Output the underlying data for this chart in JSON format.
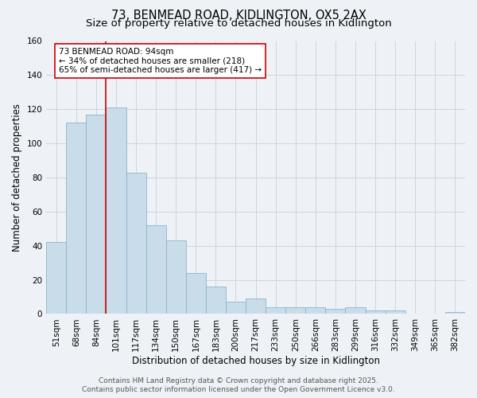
{
  "title_line1": "73, BENMEAD ROAD, KIDLINGTON, OX5 2AX",
  "title_line2": "Size of property relative to detached houses in Kidlington",
  "xlabel": "Distribution of detached houses by size in Kidlington",
  "ylabel": "Number of detached properties",
  "categories": [
    "51sqm",
    "68sqm",
    "84sqm",
    "101sqm",
    "117sqm",
    "134sqm",
    "150sqm",
    "167sqm",
    "183sqm",
    "200sqm",
    "217sqm",
    "233sqm",
    "250sqm",
    "266sqm",
    "283sqm",
    "299sqm",
    "316sqm",
    "332sqm",
    "349sqm",
    "365sqm",
    "382sqm"
  ],
  "values": [
    42,
    112,
    117,
    121,
    83,
    52,
    43,
    24,
    16,
    7,
    9,
    4,
    4,
    4,
    3,
    4,
    2,
    2,
    0,
    0,
    1
  ],
  "bar_color": "#c9dcea",
  "bar_edge_color": "#8ab4cc",
  "vline_x": 2.5,
  "vline_color": "#cc0000",
  "annotation_text": "73 BENMEAD ROAD: 94sqm\n← 34% of detached houses are smaller (218)\n65% of semi-detached houses are larger (417) →",
  "annotation_box_facecolor": "#ffffff",
  "annotation_box_edgecolor": "#cc0000",
  "ylim": [
    0,
    160
  ],
  "yticks": [
    0,
    20,
    40,
    60,
    80,
    100,
    120,
    140,
    160
  ],
  "grid_color": "#cdd5e0",
  "background_color": "#eef2f7",
  "footer_text": "Contains HM Land Registry data © Crown copyright and database right 2025.\nContains public sector information licensed under the Open Government Licence v3.0.",
  "title_fontsize": 10.5,
  "subtitle_fontsize": 9.5,
  "axis_label_fontsize": 8.5,
  "tick_fontsize": 7.5,
  "annotation_fontsize": 7.5,
  "footer_fontsize": 6.5
}
